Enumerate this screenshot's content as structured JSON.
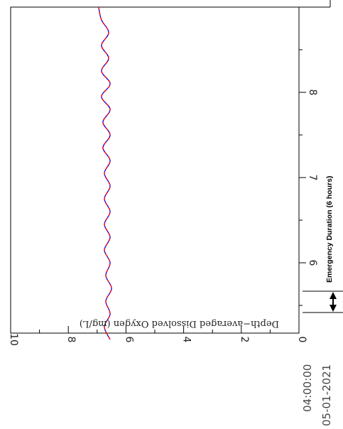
{
  "chart_data": {
    "type": "line",
    "orientation": "rotated 90 degrees clockwise",
    "ylabel": "Depth−averaged Dissolved Oxygen (mg/L)",
    "ylim": [
      0,
      10
    ],
    "yticks": [
      "0",
      "2",
      "4",
      "6",
      "8",
      "10"
    ],
    "xlim": [
      5.1,
      9.0
    ],
    "xticks": [
      "6",
      "7",
      "8"
    ],
    "x_start_time": "04:00:00",
    "x_start_date": "05-01-2021",
    "grid": false,
    "series": [
      {
        "color": "#0000ff",
        "x": [
          5.1,
          5.25,
          5.4,
          5.55,
          5.7,
          5.85,
          6.0,
          6.15,
          6.3,
          6.45,
          6.6,
          6.75,
          6.9,
          7.05,
          7.2,
          7.35,
          7.5,
          7.65,
          7.8,
          7.95,
          8.1,
          8.25,
          8.4,
          8.55,
          8.7,
          8.85,
          9.0
        ],
        "values": [
          6.55,
          6.75,
          6.55,
          6.7,
          6.5,
          6.7,
          6.55,
          6.75,
          6.55,
          6.75,
          6.55,
          6.75,
          6.55,
          6.75,
          6.55,
          6.8,
          6.55,
          6.8,
          6.55,
          6.85,
          6.55,
          6.85,
          6.6,
          6.85,
          6.6,
          6.85,
          6.95
        ]
      },
      {
        "color": "#ff0000",
        "style": "dashed",
        "x": [
          5.1,
          5.25,
          5.4,
          5.55,
          5.7,
          5.85,
          6.0,
          6.15,
          6.3,
          6.45,
          6.6,
          6.75,
          6.9,
          7.05,
          7.2,
          7.35,
          7.5,
          7.65,
          7.8,
          7.95,
          8.1,
          8.25,
          8.4,
          8.55,
          8.7,
          8.85,
          9.0
        ],
        "values": [
          6.55,
          6.75,
          6.55,
          6.7,
          6.5,
          6.7,
          6.55,
          6.75,
          6.55,
          6.75,
          6.55,
          6.75,
          6.55,
          6.75,
          6.55,
          6.8,
          6.55,
          6.8,
          6.55,
          6.85,
          6.55,
          6.85,
          6.6,
          6.85,
          6.6,
          6.85,
          6.95
        ]
      }
    ],
    "annotations": {
      "emergency_label": "Emergency Duration (6 hours)"
    }
  }
}
